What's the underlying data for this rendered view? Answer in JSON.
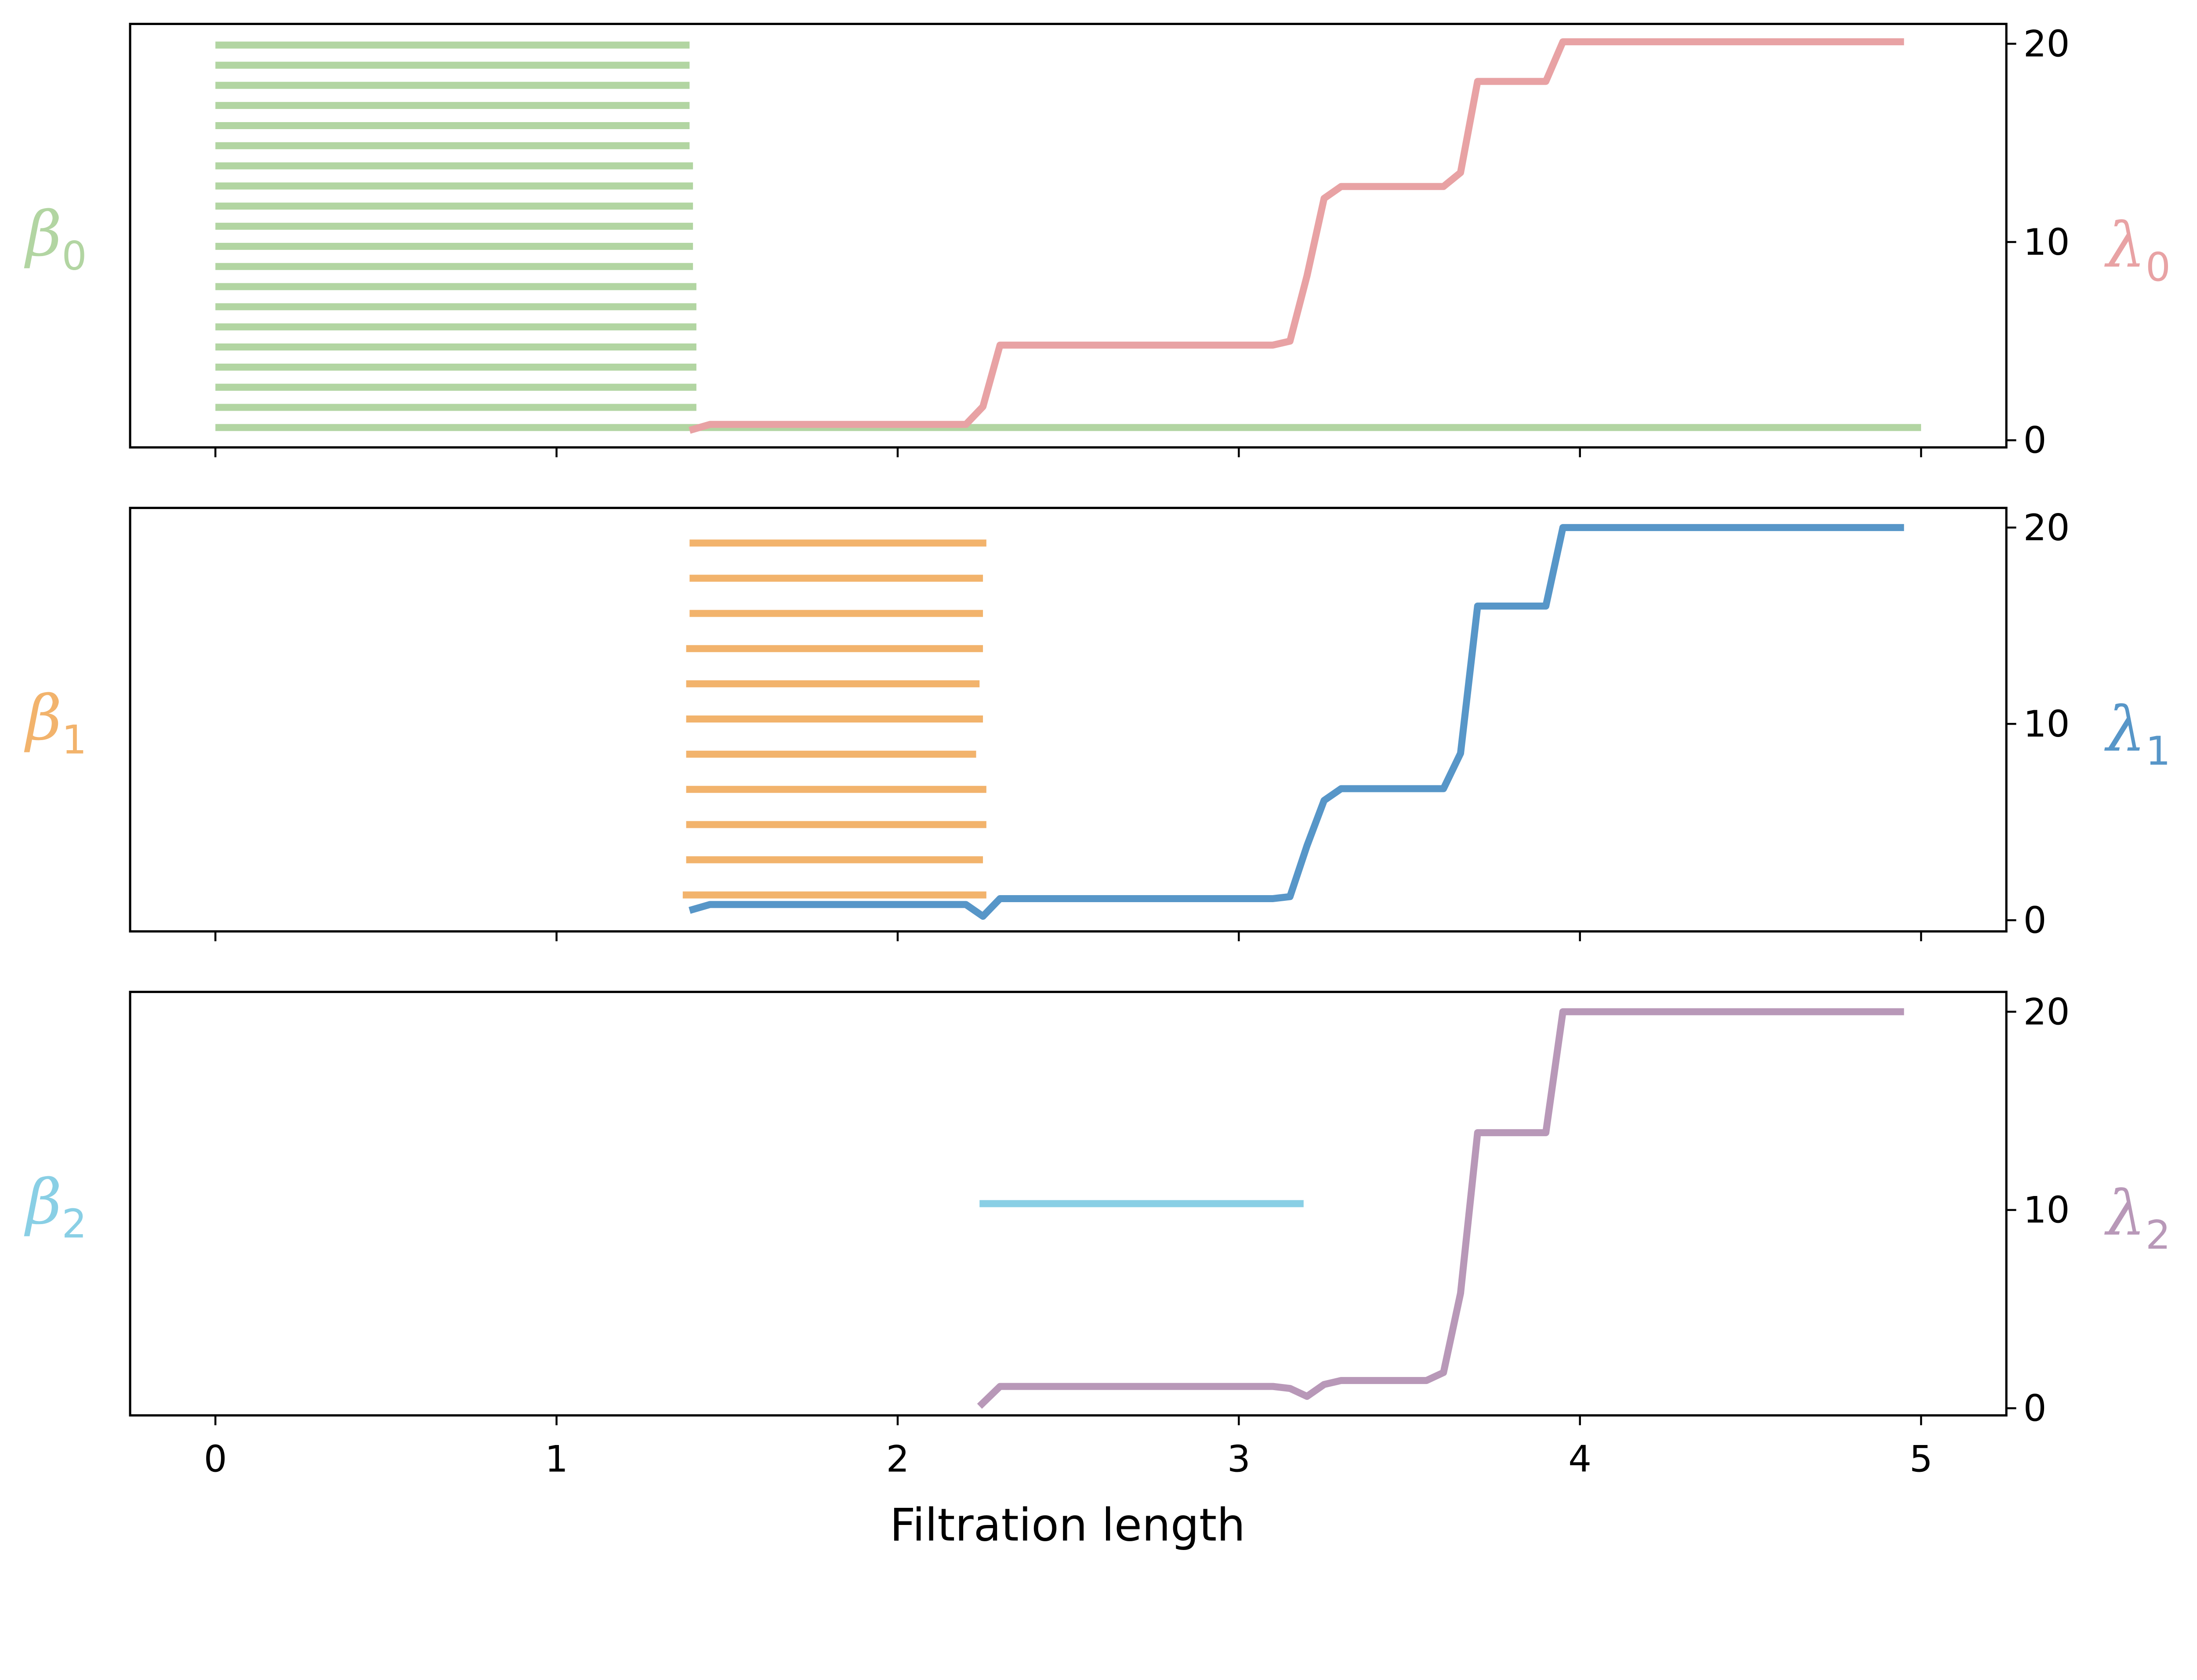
{
  "chart_data": {
    "type": "line",
    "xlabel": "Filtration length",
    "xlim": [
      -0.25,
      5.25
    ],
    "xticks": [
      0,
      1,
      2,
      3,
      4,
      5
    ],
    "x_tick_labels": [
      "0",
      "1",
      "2",
      "3",
      "4",
      "5"
    ],
    "panels": [
      {
        "left_label": {
          "symbol": "β",
          "sub": "0"
        },
        "right_label": {
          "symbol": "λ",
          "sub": "0"
        },
        "ylim": [
          -0.36,
          21.0
        ],
        "yticks": [
          0,
          10,
          20
        ],
        "y_tick_labels": [
          "0",
          "10",
          "20"
        ],
        "barcode_color": "#b2d5a2",
        "curve_color": "#e8a2a4",
        "barcode": [
          [
            0,
            1.39
          ],
          [
            0,
            1.39
          ],
          [
            0,
            1.39
          ],
          [
            0,
            1.39
          ],
          [
            0,
            1.39
          ],
          [
            0,
            1.39
          ],
          [
            0,
            1.4
          ],
          [
            0,
            1.4
          ],
          [
            0,
            1.4
          ],
          [
            0,
            1.4
          ],
          [
            0,
            1.4
          ],
          [
            0,
            1.4
          ],
          [
            0,
            1.41
          ],
          [
            0,
            1.41
          ],
          [
            0,
            1.41
          ],
          [
            0,
            1.41
          ],
          [
            0,
            1.41
          ],
          [
            0,
            1.41
          ],
          [
            0,
            1.41
          ],
          [
            0,
            5.0
          ]
        ],
        "curve": {
          "x": [
            1.39,
            1.45,
            2.2,
            2.25,
            2.3,
            3.1,
            3.15,
            3.2,
            3.25,
            3.3,
            3.6,
            3.65,
            3.7,
            3.9,
            3.95,
            4.95
          ],
          "y": [
            0.5,
            0.8,
            0.8,
            1.7,
            4.8,
            4.8,
            5.0,
            8.3,
            12.2,
            12.8,
            12.8,
            13.5,
            18.1,
            18.1,
            20.1,
            20.1
          ]
        }
      },
      {
        "left_label": {
          "symbol": "β",
          "sub": "1"
        },
        "right_label": {
          "symbol": "λ",
          "sub": "1"
        },
        "ylim": [
          -0.57,
          21.0
        ],
        "yticks": [
          0,
          10,
          20
        ],
        "y_tick_labels": [
          "0",
          "10",
          "20"
        ],
        "barcode_color": "#f2b36c",
        "curve_color": "#5796c8",
        "barcode": [
          [
            1.39,
            2.26
          ],
          [
            1.39,
            2.25
          ],
          [
            1.39,
            2.25
          ],
          [
            1.38,
            2.25
          ],
          [
            1.38,
            2.24
          ],
          [
            1.38,
            2.25
          ],
          [
            1.38,
            2.23
          ],
          [
            1.38,
            2.26
          ],
          [
            1.38,
            2.26
          ],
          [
            1.38,
            2.25
          ],
          [
            1.37,
            2.26
          ]
        ],
        "curve": {
          "x": [
            1.39,
            1.45,
            2.2,
            2.25,
            2.3,
            3.1,
            3.15,
            3.2,
            3.25,
            3.3,
            3.6,
            3.65,
            3.7,
            3.9,
            3.95,
            4.95
          ],
          "y": [
            0.5,
            0.8,
            0.8,
            0.2,
            1.1,
            1.1,
            1.2,
            3.8,
            6.1,
            6.7,
            6.7,
            8.5,
            16.0,
            16.0,
            20.0,
            20.0
          ]
        }
      },
      {
        "left_label": {
          "symbol": "β",
          "sub": "2"
        },
        "right_label": {
          "symbol": "λ",
          "sub": "2"
        },
        "ylim": [
          -0.36,
          21.0
        ],
        "yticks": [
          0,
          10,
          20
        ],
        "y_tick_labels": [
          "0",
          "10",
          "20"
        ],
        "barcode_color": "#89cfe5",
        "curve_color": "#b898b8",
        "barcode": [
          [
            2.24,
            3.19
          ]
        ],
        "curve": {
          "x": [
            2.24,
            2.3,
            3.1,
            3.15,
            3.2,
            3.25,
            3.3,
            3.55,
            3.6,
            3.65,
            3.7,
            3.9,
            3.95,
            4.95
          ],
          "y": [
            0.1,
            1.1,
            1.1,
            1.0,
            0.6,
            1.2,
            1.4,
            1.4,
            1.8,
            5.8,
            13.9,
            13.9,
            20.0,
            20.0
          ]
        }
      }
    ]
  }
}
